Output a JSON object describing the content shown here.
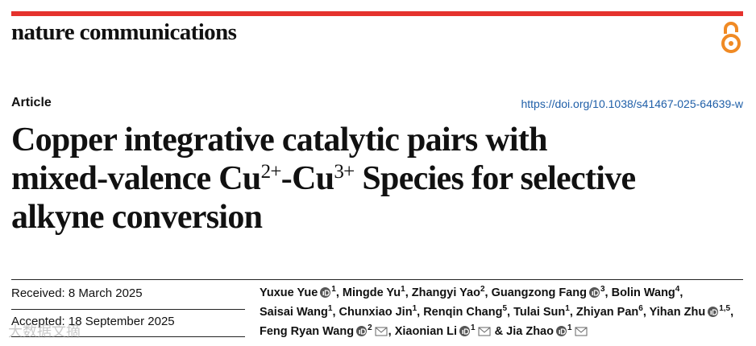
{
  "header": {
    "journal": "nature communications"
  },
  "article": {
    "type": "Article",
    "doi": "https://doi.org/10.1038/s41467-025-64639-w",
    "title": {
      "lines": [
        [
          {
            "text": "Copper integrative catalytic pairs with"
          }
        ],
        [
          {
            "text": "mixed-valence Cu"
          },
          {
            "sup": "2+"
          },
          {
            "text": "-Cu"
          },
          {
            "sup": "3+"
          },
          {
            "text": " Species for selective"
          }
        ],
        [
          {
            "text": "alkyne conversion"
          }
        ]
      ]
    }
  },
  "dates": {
    "received": "Received: 8 March 2025",
    "accepted": "Accepted: 18 September 2025"
  },
  "authors": {
    "separator": ",",
    "final_separator": "&",
    "list": [
      {
        "name": "Yuxue Yue",
        "orcid": true,
        "affiliations": "1",
        "corresponding": false
      },
      {
        "name": "Mingde Yu",
        "orcid": false,
        "affiliations": "1",
        "corresponding": false
      },
      {
        "name": "Zhangyi Yao",
        "orcid": false,
        "affiliations": "2",
        "corresponding": false
      },
      {
        "name": "Guangzong Fang",
        "orcid": true,
        "affiliations": "3",
        "corresponding": false
      },
      {
        "name": "Bolin Wang",
        "orcid": false,
        "affiliations": "4",
        "corresponding": false
      },
      {
        "name": "Saisai Wang",
        "orcid": false,
        "affiliations": "1",
        "corresponding": false
      },
      {
        "name": "Chunxiao Jin",
        "orcid": false,
        "affiliations": "1",
        "corresponding": false
      },
      {
        "name": "Renqin Chang",
        "orcid": false,
        "affiliations": "5",
        "corresponding": false
      },
      {
        "name": "Tulai Sun",
        "orcid": false,
        "affiliations": "1",
        "corresponding": false
      },
      {
        "name": "Zhiyan Pan",
        "orcid": false,
        "affiliations": "6",
        "corresponding": false
      },
      {
        "name": "Yihan Zhu",
        "orcid": true,
        "affiliations": "1,5",
        "corresponding": false
      },
      {
        "name": "Feng Ryan Wang",
        "orcid": true,
        "affiliations": "2",
        "corresponding": true
      },
      {
        "name": "Xiaonian Li",
        "orcid": true,
        "affiliations": "1",
        "corresponding": true
      },
      {
        "name": "Jia Zhao",
        "orcid": true,
        "affiliations": "1",
        "corresponding": true
      }
    ]
  },
  "watermark": "大数据文摘"
}
